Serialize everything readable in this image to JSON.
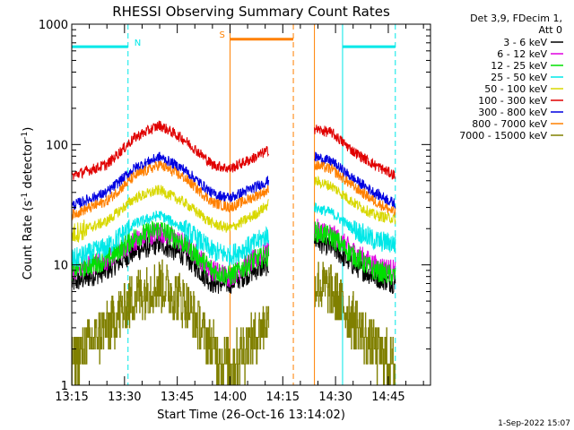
{
  "chart_data": {
    "type": "line",
    "title": "RHESSI Observing Summary Count Rates",
    "xlabel": "Start Time (26-Oct-16 13:14:02)",
    "ylabel_main": "Count Rate (s",
    "ylabel_sup1": "-1",
    "ylabel_mid": " detector",
    "ylabel_sup2": "-1",
    "ylabel_end": ")",
    "y_scale": "log",
    "ylim": [
      1,
      1000
    ],
    "xlim_minutes": [
      0,
      102
    ],
    "x_ticks": [
      {
        "label": "13:15",
        "value": 0
      },
      {
        "label": "13:30",
        "value": 15
      },
      {
        "label": "13:45",
        "value": 30
      },
      {
        "label": "14:00",
        "value": 45
      },
      {
        "label": "14:15",
        "value": 60
      },
      {
        "label": "14:30",
        "value": 75
      },
      {
        "label": "14:45",
        "value": 90
      }
    ],
    "y_ticks": [
      {
        "label": "1",
        "value": 1
      },
      {
        "label": "10",
        "value": 10
      },
      {
        "label": "100",
        "value": 100
      },
      {
        "label": "1000",
        "value": 1000
      }
    ],
    "legend_header": [
      "Det 3,9, FDecim 1,",
      "Att 0"
    ],
    "legend_placement": "right",
    "gap_minutes": [
      56,
      69
    ],
    "series": [
      {
        "name": "3 - 6 keV",
        "color": "#000000",
        "points": [
          [
            0,
            7
          ],
          [
            10,
            9
          ],
          [
            18,
            13
          ],
          [
            25,
            15
          ],
          [
            32,
            12
          ],
          [
            40,
            7
          ],
          [
            45,
            7
          ],
          [
            52,
            9
          ],
          [
            56,
            10
          ],
          [
            69,
            16
          ],
          [
            74,
            14
          ],
          [
            80,
            10
          ],
          [
            86,
            8
          ],
          [
            92,
            7
          ]
        ]
      },
      {
        "name": "6 - 12 keV",
        "color": "#e000e0",
        "points": [
          [
            0,
            9
          ],
          [
            10,
            11
          ],
          [
            18,
            16
          ],
          [
            25,
            19
          ],
          [
            32,
            15
          ],
          [
            40,
            9
          ],
          [
            45,
            8
          ],
          [
            52,
            11
          ],
          [
            56,
            13
          ],
          [
            69,
            20
          ],
          [
            74,
            18
          ],
          [
            80,
            13
          ],
          [
            86,
            10
          ],
          [
            92,
            9
          ]
        ]
      },
      {
        "name": "12 - 25 keV",
        "color": "#00e000",
        "points": [
          [
            0,
            9
          ],
          [
            10,
            11
          ],
          [
            18,
            17
          ],
          [
            25,
            20
          ],
          [
            32,
            15
          ],
          [
            40,
            9
          ],
          [
            45,
            8
          ],
          [
            52,
            11
          ],
          [
            56,
            12
          ],
          [
            69,
            19
          ],
          [
            74,
            17
          ],
          [
            80,
            12
          ],
          [
            86,
            9
          ],
          [
            92,
            8
          ]
        ]
      },
      {
        "name": "25 - 50 keV",
        "color": "#00e8e8",
        "points": [
          [
            0,
            11
          ],
          [
            10,
            14
          ],
          [
            18,
            22
          ],
          [
            25,
            26
          ],
          [
            32,
            20
          ],
          [
            40,
            13
          ],
          [
            45,
            12
          ],
          [
            52,
            15
          ],
          [
            56,
            18
          ],
          [
            69,
            30
          ],
          [
            74,
            27
          ],
          [
            80,
            20
          ],
          [
            86,
            16
          ],
          [
            92,
            15
          ]
        ]
      },
      {
        "name": "50 - 100 keV",
        "color": "#d8d800",
        "points": [
          [
            0,
            18
          ],
          [
            10,
            23
          ],
          [
            18,
            36
          ],
          [
            25,
            42
          ],
          [
            32,
            33
          ],
          [
            40,
            22
          ],
          [
            45,
            20
          ],
          [
            52,
            26
          ],
          [
            56,
            32
          ],
          [
            69,
            50
          ],
          [
            74,
            45
          ],
          [
            80,
            33
          ],
          [
            86,
            26
          ],
          [
            92,
            24
          ]
        ]
      },
      {
        "name": "100 - 300 keV",
        "color": "#e00000",
        "points": [
          [
            0,
            55
          ],
          [
            10,
            68
          ],
          [
            18,
            115
          ],
          [
            25,
            145
          ],
          [
            32,
            110
          ],
          [
            40,
            68
          ],
          [
            45,
            63
          ],
          [
            52,
            78
          ],
          [
            56,
            90
          ],
          [
            69,
            135
          ],
          [
            74,
            125
          ],
          [
            80,
            88
          ],
          [
            86,
            68
          ],
          [
            92,
            55
          ]
        ]
      },
      {
        "name": "300 - 800 keV",
        "color": "#0000e0",
        "points": [
          [
            0,
            31
          ],
          [
            10,
            40
          ],
          [
            18,
            64
          ],
          [
            25,
            79
          ],
          [
            32,
            62
          ],
          [
            40,
            39
          ],
          [
            45,
            36
          ],
          [
            52,
            44
          ],
          [
            56,
            50
          ],
          [
            69,
            79
          ],
          [
            74,
            72
          ],
          [
            80,
            52
          ],
          [
            86,
            40
          ],
          [
            92,
            32
          ]
        ]
      },
      {
        "name": "800 - 7000 keV",
        "color": "#ff8000",
        "points": [
          [
            0,
            26
          ],
          [
            10,
            34
          ],
          [
            18,
            55
          ],
          [
            25,
            68
          ],
          [
            32,
            53
          ],
          [
            40,
            33
          ],
          [
            45,
            30
          ],
          [
            52,
            37
          ],
          [
            56,
            42
          ],
          [
            69,
            68
          ],
          [
            74,
            62
          ],
          [
            80,
            45
          ],
          [
            86,
            34
          ],
          [
            92,
            27
          ]
        ]
      },
      {
        "name": "7000 - 15000 keV",
        "color": "#808000",
        "points": [
          [
            0,
            1.6
          ],
          [
            10,
            3
          ],
          [
            18,
            5.5
          ],
          [
            25,
            7
          ],
          [
            32,
            5
          ],
          [
            40,
            2
          ],
          [
            45,
            1.5
          ],
          [
            52,
            2.5
          ],
          [
            56,
            3.5
          ],
          [
            69,
            7
          ],
          [
            74,
            6
          ],
          [
            80,
            3.5
          ],
          [
            86,
            2
          ],
          [
            92,
            1.5
          ]
        ]
      }
    ],
    "attenuator_bars": [
      {
        "label": "N",
        "color": "#00e8e8",
        "x_start": 0,
        "x_end": 16,
        "y": 650
      },
      {
        "label": "",
        "color": "#00e8e8",
        "x_start": 77,
        "x_end": 92,
        "y": 650
      },
      {
        "label": "S",
        "color": "#ff8000",
        "x_start": 45,
        "x_end": 63,
        "y": 750
      }
    ],
    "vertical_markers": [
      {
        "x": 0,
        "color": "#00e8e8",
        "style": "solid"
      },
      {
        "x": 16,
        "color": "#00e8e8",
        "style": "dashed"
      },
      {
        "x": 45,
        "color": "#ff8000",
        "style": "solid"
      },
      {
        "x": 63,
        "color": "#ff8000",
        "style": "dashed"
      },
      {
        "x": 69,
        "color": "#ff8000",
        "style": "solid"
      },
      {
        "x": 77,
        "color": "#00e8e8",
        "style": "solid"
      },
      {
        "x": 92,
        "color": "#00e8e8",
        "style": "dashed"
      }
    ]
  },
  "footer": {
    "date_stamp": "1-Sep-2022 15:07"
  }
}
